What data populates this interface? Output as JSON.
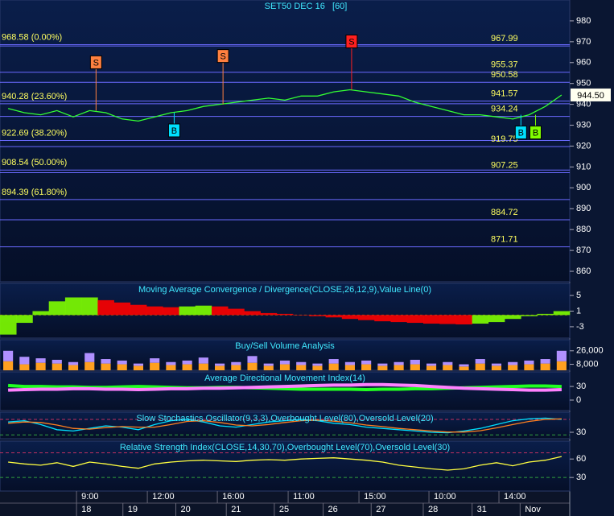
{
  "chart_data": [
    {
      "type": "line",
      "title": "SET50 DEC 16   [60]",
      "ylim": [
        855,
        990
      ],
      "yticks": [
        860,
        870,
        880,
        890,
        900,
        910,
        920,
        930,
        940,
        950,
        960,
        970,
        980
      ],
      "xlim": [
        0,
        35
      ],
      "xticks": [
        {
          "value": 4.8,
          "label": "9:00"
        },
        {
          "value": 9.15,
          "label": "12:00"
        },
        {
          "value": 13.45,
          "label": "16:00"
        },
        {
          "value": 17.8,
          "label": "11:00"
        },
        {
          "value": 22.15,
          "label": "15:00"
        },
        {
          "value": 26.45,
          "label": "10:00"
        },
        {
          "value": 30.75,
          "label": "14:00"
        }
      ],
      "date_ticks": [
        {
          "value": 4.8,
          "label": "18"
        },
        {
          "value": 7.65,
          "label": "19"
        },
        {
          "value": 10.9,
          "label": "20"
        },
        {
          "value": 14.0,
          "label": "21"
        },
        {
          "value": 16.95,
          "label": "25"
        },
        {
          "value": 19.95,
          "label": "26"
        },
        {
          "value": 22.9,
          "label": "27"
        },
        {
          "value": 26.1,
          "label": "28"
        },
        {
          "value": 29.1,
          "label": "31"
        },
        {
          "value": 32.05,
          "label": "Nov"
        }
      ],
      "series": [
        {
          "color": "#33ff33",
          "values": [
            938,
            936,
            935,
            937,
            934,
            937,
            936,
            933,
            932,
            934,
            936,
            937,
            939,
            940,
            941,
            942,
            943,
            942,
            944,
            944,
            946,
            947,
            946,
            945,
            944,
            941,
            939,
            937,
            935,
            935,
            934,
            933,
            935,
            939,
            944.5
          ]
        }
      ],
      "levels": [
        {
          "value": 968.58,
          "label": "968.58 (0.00%)",
          "side": "left"
        },
        {
          "value": 940.28,
          "label": "940.28 (23.60%)",
          "side": "left"
        },
        {
          "value": 922.69,
          "label": "922.69 (38.20%)",
          "side": "left"
        },
        {
          "value": 908.54,
          "label": "908.54 (50.00%)",
          "side": "left"
        },
        {
          "value": 894.39,
          "label": "894.39 (61.80%)",
          "side": "left"
        },
        {
          "value": 967.99,
          "label": "967.99",
          "side": "right"
        },
        {
          "value": 955.37,
          "label": "955.37",
          "side": "right"
        },
        {
          "value": 950.58,
          "label": "950.58",
          "side": "right"
        },
        {
          "value": 941.57,
          "label": "941.57",
          "side": "right"
        },
        {
          "value": 934.24,
          "label": "934.24",
          "side": "right"
        },
        {
          "value": 919.75,
          "label": "919.75",
          "side": "right"
        },
        {
          "value": 907.25,
          "label": "907.25",
          "side": "right"
        },
        {
          "value": 884.72,
          "label": "884.72",
          "side": "right"
        },
        {
          "value": 871.71,
          "label": "871.71",
          "side": "right"
        }
      ],
      "signals": [
        {
          "label": "S",
          "x": 5.9,
          "color": "#ff8040"
        },
        {
          "label": "S",
          "x": 13.7,
          "color": "#ff8040"
        },
        {
          "label": "S",
          "x": 21.6,
          "color": "#ff2020"
        },
        {
          "label": "B",
          "x": 10.7,
          "color": "#00e0ff"
        },
        {
          "label": "B",
          "x": 32.0,
          "color": "#00e0ff"
        },
        {
          "label": "B",
          "x": 32.9,
          "color": "#80ff00"
        }
      ],
      "last": {
        "value": 944.5,
        "label": "944.50"
      }
    },
    {
      "type": "area",
      "title": "Moving Average Convergence / Divergence(CLOSE,26,12,9),Value Line(0)",
      "ylim": [
        -5.9,
        8.1
      ],
      "yticks": [
        5,
        1,
        -3
      ],
      "up_color": "#80ff00",
      "down_color": "#ff0000",
      "values": [
        -5,
        -2,
        1,
        3.5,
        4.5,
        4.5,
        3.8,
        3.2,
        2.6,
        2.2,
        2,
        2.2,
        2.4,
        2.2,
        1.6,
        1,
        0.5,
        0.3,
        0,
        -0.3,
        -0.6,
        -1,
        -1.3,
        -1.6,
        -1.8,
        -2,
        -2.2,
        -2.3,
        -2.4,
        -2.2,
        -1.8,
        -1,
        -0.3,
        0.3,
        1
      ]
    },
    {
      "type": "bar",
      "title": "Buy/Sell Volume Analysis",
      "ylim": [
        0,
        40800
      ],
      "yticks": [
        {
          "value": 26000,
          "label": "26,000"
        },
        {
          "value": 8000,
          "label": "8,000"
        }
      ],
      "stacked": true,
      "series": [
        {
          "color": "#ffa020",
          "values": [
            12000,
            8000,
            10000,
            9000,
            7000,
            11000,
            9000,
            8000,
            6000,
            10000,
            7000,
            8000,
            9000,
            6000,
            7000,
            10000,
            6000,
            8000,
            7000,
            6000,
            9000,
            7000,
            8000,
            6000,
            7000,
            8000,
            6000,
            7000,
            5000,
            9000,
            6000,
            7000,
            8000,
            9000,
            12000
          ]
        },
        {
          "color": "#b090ff",
          "values": [
            14000,
            10000,
            6000,
            5000,
            4000,
            12000,
            6000,
            5000,
            3000,
            6000,
            4000,
            5000,
            8000,
            3000,
            4000,
            9000,
            3000,
            5000,
            4000,
            3000,
            6000,
            4000,
            5000,
            3000,
            4000,
            6000,
            3000,
            4000,
            3000,
            6000,
            3000,
            4000,
            5000,
            6000,
            14000
          ]
        }
      ]
    },
    {
      "type": "line",
      "title": "Average Directional Movement Index(14)",
      "ylim": [
        -23,
        62
      ],
      "yticks": [
        30,
        0
      ],
      "width": 4,
      "series": [
        {
          "color": "#20ff20",
          "values": [
            32,
            30,
            30,
            29,
            29,
            28,
            28,
            29,
            30,
            29,
            28,
            27,
            27,
            28,
            28,
            27,
            26,
            25,
            24,
            24,
            24,
            24,
            23,
            24,
            24,
            25,
            25,
            26,
            27,
            28,
            29,
            30,
            31,
            31,
            30
          ]
        },
        {
          "color": "#ff80ff",
          "values": [
            22,
            23,
            24,
            24,
            25,
            25,
            24,
            24,
            23,
            24,
            25,
            25,
            26,
            26,
            27,
            28,
            29,
            30,
            31,
            32,
            33,
            33,
            34,
            34,
            33,
            32,
            30,
            28,
            26,
            25,
            24,
            23,
            22,
            22,
            23
          ]
        }
      ]
    },
    {
      "type": "line",
      "title": "Slow Stochastics Oscillator(9,3,3),Overbought Level(80),Oversold Level(20)",
      "ylim": [
        5,
        108
      ],
      "yticks": [
        30
      ],
      "hlines": [
        80,
        20
      ],
      "series": [
        {
          "color": "#00e0ff",
          "values": [
            70,
            75,
            60,
            40,
            35,
            45,
            55,
            50,
            40,
            60,
            75,
            80,
            70,
            55,
            50,
            60,
            70,
            75,
            80,
            75,
            65,
            60,
            50,
            45,
            40,
            35,
            30,
            28,
            35,
            45,
            60,
            75,
            82,
            85,
            80
          ]
        },
        {
          "color": "#ff8020",
          "values": [
            65,
            70,
            68,
            58,
            45,
            42,
            48,
            52,
            50,
            50,
            60,
            72,
            75,
            68,
            58,
            55,
            60,
            68,
            75,
            77,
            73,
            67,
            58,
            52,
            45,
            40,
            35,
            31,
            31,
            36,
            47,
            60,
            72,
            80,
            82
          ]
        }
      ]
    },
    {
      "type": "line",
      "title": "Relative Strength Index(CLOSE,14,30,70),Overbought Level(70),Oversold Level(30)",
      "ylim": [
        8,
        89
      ],
      "yticks": [
        60,
        30
      ],
      "hlines": [
        70,
        30
      ],
      "series": [
        {
          "color": "#ffff40",
          "values": [
            55,
            52,
            50,
            54,
            48,
            55,
            52,
            48,
            45,
            52,
            55,
            57,
            58,
            57,
            56,
            58,
            59,
            58,
            60,
            61,
            62,
            60,
            58,
            55,
            50,
            47,
            44,
            42,
            44,
            50,
            54,
            49,
            55,
            58,
            64
          ]
        }
      ]
    }
  ]
}
